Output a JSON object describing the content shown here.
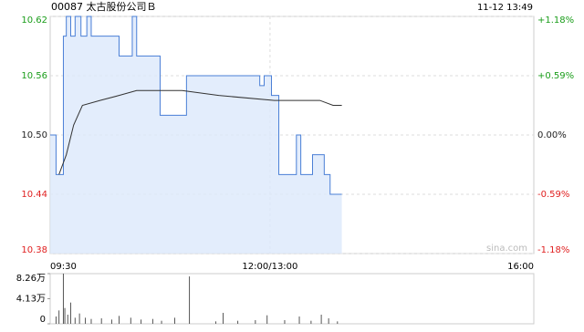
{
  "chart_data": [
    {
      "type": "line",
      "title": "00087 太古股份公司Ｂ",
      "subtitle": "11-12 13:49",
      "watermark": "sina.com",
      "xlim": [
        0,
        330
      ],
      "xticks": [
        {
          "value": 0,
          "label": "09:30"
        },
        {
          "value": 150,
          "label": "12:00/13:00"
        },
        {
          "value": 330,
          "label": "16:00"
        }
      ],
      "ylim": [
        10.38,
        10.62
      ],
      "yticks": [
        {
          "value": 10.38,
          "label": "10.38"
        },
        {
          "value": 10.44,
          "label": "10.44"
        },
        {
          "value": 10.5,
          "label": "10.50"
        },
        {
          "value": 10.56,
          "label": "10.56"
        },
        {
          "value": 10.62,
          "label": "10.62"
        }
      ],
      "y2lim": [
        -1.18,
        1.18
      ],
      "y2ticks": [
        {
          "value": -1.18,
          "label": "-1.18%"
        },
        {
          "value": -0.59,
          "label": "-0.59%"
        },
        {
          "value": 0,
          "label": "0.00%"
        },
        {
          "value": 0.59,
          "label": "+0.59%"
        },
        {
          "value": 1.18,
          "label": "+1.18%"
        }
      ],
      "up_color": "#1a9d1a",
      "down_color": "#e02020",
      "grid": true,
      "series": [
        {
          "color": "#4a7fd6",
          "fill": "#dce8fb",
          "x": [
            0,
            4,
            4,
            9,
            9,
            11,
            11,
            14,
            14,
            17,
            17,
            21,
            21,
            25,
            25,
            28,
            28,
            47,
            47,
            56,
            56,
            59,
            59,
            75,
            75,
            93,
            93,
            143,
            143,
            146,
            146,
            151,
            151,
            156,
            156,
            168,
            168,
            171,
            171,
            179,
            179,
            187,
            187,
            191,
            191,
            199
          ],
          "values": [
            10.5,
            10.5,
            10.46,
            10.46,
            10.6,
            10.6,
            10.62,
            10.62,
            10.6,
            10.6,
            10.62,
            10.62,
            10.6,
            10.6,
            10.62,
            10.62,
            10.6,
            10.6,
            10.58,
            10.58,
            10.62,
            10.62,
            10.58,
            10.58,
            10.52,
            10.52,
            10.56,
            10.56,
            10.55,
            10.55,
            10.56,
            10.56,
            10.54,
            10.54,
            10.46,
            10.46,
            10.5,
            10.5,
            10.46,
            10.46,
            10.48,
            10.48,
            10.46,
            10.46,
            10.44,
            10.44
          ]
        },
        {
          "color": "#333333",
          "x": [
            6,
            11,
            16,
            22,
            34,
            47,
            59,
            90,
            115,
            153,
            184,
            193,
            199
          ],
          "values": [
            10.46,
            10.48,
            10.51,
            10.53,
            10.535,
            10.54,
            10.545,
            10.545,
            10.54,
            10.535,
            10.535,
            10.53,
            10.53
          ]
        }
      ]
    },
    {
      "type": "bar",
      "xlim": [
        0,
        330
      ],
      "ylim": [
        0,
        8.26
      ],
      "yticks": [
        {
          "value": 0,
          "label": "0"
        },
        {
          "value": 4.13,
          "label": "4.13万"
        },
        {
          "value": 8.26,
          "label": "8.26万"
        }
      ],
      "color": "#555555",
      "x": [
        4,
        6,
        9,
        10,
        12,
        14,
        17,
        20,
        24,
        28,
        35,
        42,
        47,
        55,
        62,
        70,
        76,
        85,
        95,
        113,
        118,
        128,
        140,
        148,
        160,
        170,
        178,
        185,
        190,
        196
      ],
      "values": [
        1.2,
        2.2,
        8.26,
        2.6,
        1.5,
        3.5,
        1.0,
        1.7,
        1.0,
        0.8,
        0.9,
        0.7,
        1.3,
        1.0,
        0.7,
        0.8,
        0.5,
        1.0,
        7.8,
        0.4,
        1.8,
        0.5,
        0.6,
        1.4,
        0.6,
        1.2,
        0.5,
        1.5,
        0.9,
        0.4
      ]
    }
  ]
}
